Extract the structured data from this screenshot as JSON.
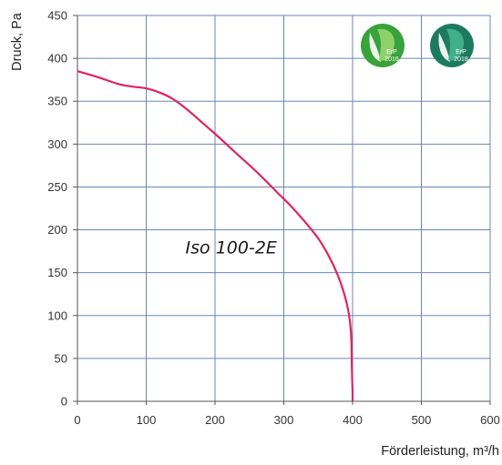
{
  "chart_data": {
    "type": "line",
    "xlabel": "Förderleistung, m³/h",
    "ylabel": "Druck, Pa",
    "xlim": [
      0,
      600
    ],
    "ylim": [
      0,
      450
    ],
    "x_ticks": [
      0,
      100,
      200,
      300,
      400,
      500,
      600
    ],
    "y_ticks": [
      0,
      50,
      100,
      150,
      200,
      250,
      300,
      350,
      400,
      450
    ],
    "grid": true,
    "series": [
      {
        "color": "#e0245e",
        "x": [
          0,
          30,
          60,
          80,
          100,
          120,
          140,
          160,
          180,
          200,
          230,
          260,
          290,
          310,
          330,
          350,
          365,
          378,
          388,
          395,
          398,
          399,
          400,
          400
        ],
        "y": [
          385,
          378,
          370,
          367,
          365,
          360,
          352,
          340,
          326,
          312,
          290,
          268,
          244,
          228,
          210,
          190,
          170,
          148,
          125,
          100,
          75,
          40,
          10,
          0
        ]
      }
    ],
    "annotations": [
      {
        "text": "Iso 100-2E",
        "x": 210,
        "y": 180
      }
    ]
  },
  "badges": [
    {
      "text_line1": "ErP",
      "text_line2": "2016",
      "color": "#3aa23a"
    },
    {
      "text_line1": "ErP",
      "text_line2": "2018",
      "color": "#1e7a5e"
    }
  ],
  "colors": {
    "grid": "#6b85b8",
    "axis": "#555555",
    "curve": "#e0245e"
  }
}
